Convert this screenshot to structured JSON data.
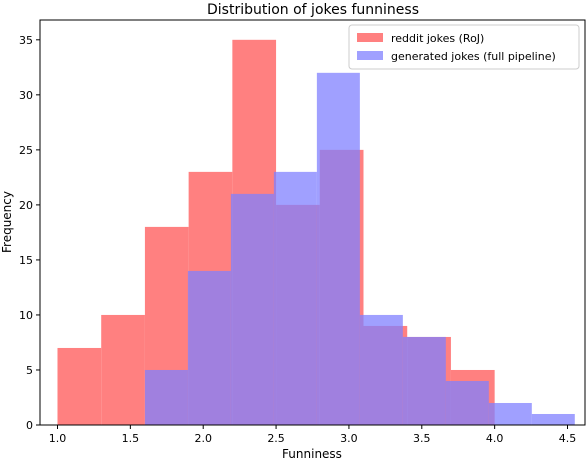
{
  "chart_data": {
    "type": "histogram",
    "title": "Distribution of jokes funniness",
    "xlabel": "Funniness",
    "ylabel": "Frequency",
    "xlim": [
      0.88,
      4.62
    ],
    "ylim": [
      0,
      36.8
    ],
    "xticks": [
      1.0,
      1.5,
      2.0,
      2.5,
      3.0,
      3.5,
      4.0,
      4.5
    ],
    "xtick_labels": [
      "1.0",
      "1.5",
      "2.0",
      "2.5",
      "3.0",
      "3.5",
      "4.0",
      "4.5"
    ],
    "yticks": [
      0,
      5,
      10,
      15,
      20,
      25,
      30,
      35
    ],
    "ytick_labels": [
      "0",
      "5",
      "10",
      "15",
      "20",
      "25",
      "30",
      "35"
    ],
    "grid": false,
    "legend_position": "top-right",
    "series": [
      {
        "name": "reddit jokes (RoJ)",
        "color": "#ff8080",
        "bin_edges": [
          1.0,
          1.3,
          1.6,
          1.9,
          2.2,
          2.5,
          2.8,
          3.1,
          3.4,
          3.7,
          4.0
        ],
        "counts": [
          7,
          10,
          18,
          23,
          35,
          20,
          25,
          9,
          8,
          5
        ]
      },
      {
        "name": "generated jokes (full pipeline)",
        "color": "#8080ff",
        "bin_edges": [
          1.6,
          1.895,
          2.19,
          2.485,
          2.78,
          3.075,
          3.37,
          3.665,
          3.96,
          4.255,
          4.55
        ],
        "counts": [
          5,
          14,
          21,
          23,
          32,
          10,
          8,
          4,
          2,
          1
        ]
      }
    ]
  }
}
